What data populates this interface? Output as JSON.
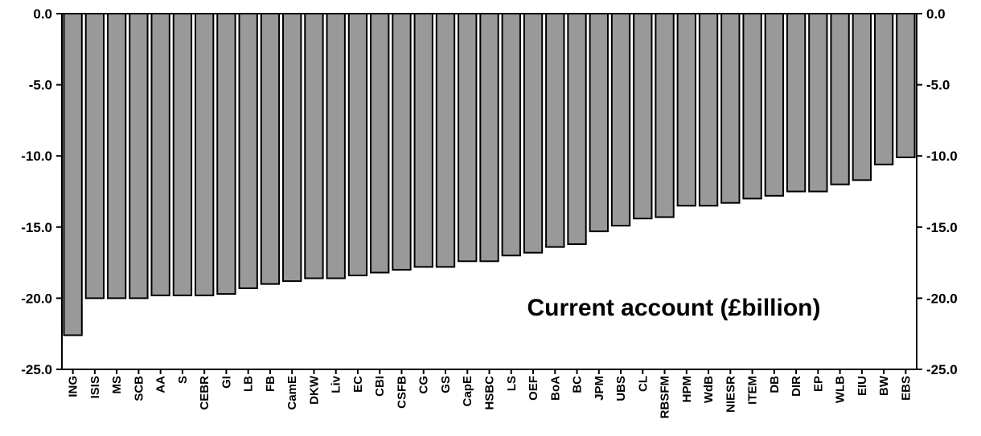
{
  "chart_data": {
    "type": "bar",
    "title": "Current account (£billion)",
    "categories": [
      "ING",
      "ISIS",
      "MS",
      "SCB",
      "AA",
      "S",
      "CEBR",
      "GI",
      "LB",
      "FB",
      "CamE",
      "DKW",
      "Liv",
      "EC",
      "CBI",
      "CSFB",
      "CG",
      "GS",
      "CapE",
      "HSBC",
      "LS",
      "OEF",
      "BoA",
      "BC",
      "JPM",
      "UBS",
      "CL",
      "RBSFM",
      "HPM",
      "WdB",
      "NIESR",
      "ITEM",
      "DB",
      "DIR",
      "EP",
      "WLB",
      "EIU",
      "BW",
      "EBS"
    ],
    "values": [
      -22.6,
      -20.0,
      -20.0,
      -20.0,
      -19.8,
      -19.8,
      -19.8,
      -19.7,
      -19.3,
      -19.0,
      -18.8,
      -18.6,
      -18.6,
      -18.4,
      -18.2,
      -18.0,
      -17.8,
      -17.8,
      -17.4,
      -17.4,
      -17.0,
      -16.8,
      -16.4,
      -16.2,
      -15.3,
      -14.9,
      -14.4,
      -14.3,
      -13.5,
      -13.5,
      -13.3,
      -13.0,
      -12.8,
      -12.5,
      -12.5,
      -12.0,
      -11.7,
      -10.6,
      -10.1
    ],
    "ylim": [
      -25,
      0
    ],
    "yticks": [
      0,
      -5,
      -10,
      -15,
      -20,
      -25
    ],
    "ytick_labels": [
      "0.0",
      "-5.0",
      "-10.0",
      "-15.0",
      "-20.0",
      "-25.0"
    ],
    "axes": [
      "left",
      "right"
    ],
    "grid": false,
    "colors": {
      "bar_fill": "#999999",
      "bar_stroke": "#000000",
      "axis": "#000000"
    }
  }
}
